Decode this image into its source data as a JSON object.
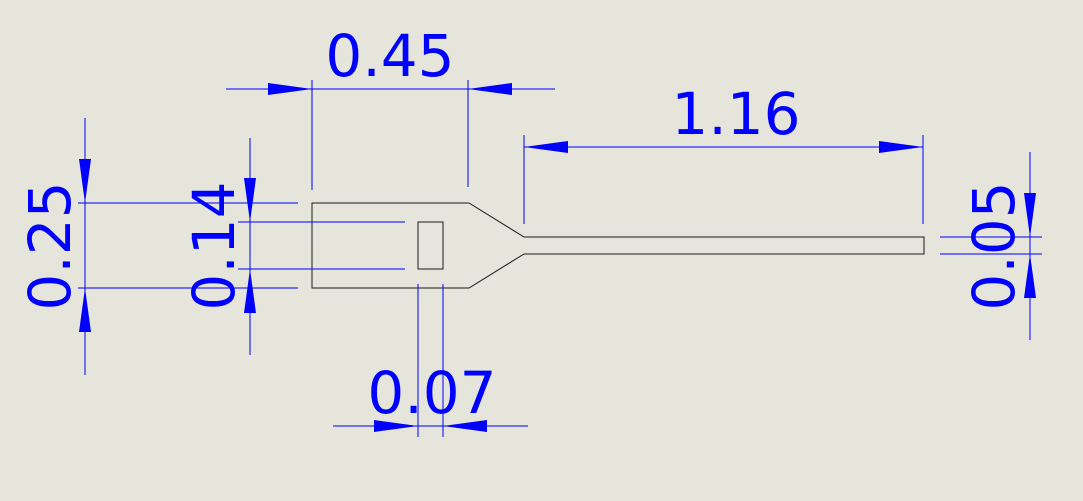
{
  "dimension_color": "#0000ff",
  "outline_color": "#1a1a1a",
  "background_color": "#e6e5dc",
  "dimensions": {
    "head_length": "0.45",
    "tip_length": "1.16",
    "head_width": "0.25",
    "slot_height": "0.14",
    "slot_width": "0.07",
    "tip_width": "0.05"
  }
}
